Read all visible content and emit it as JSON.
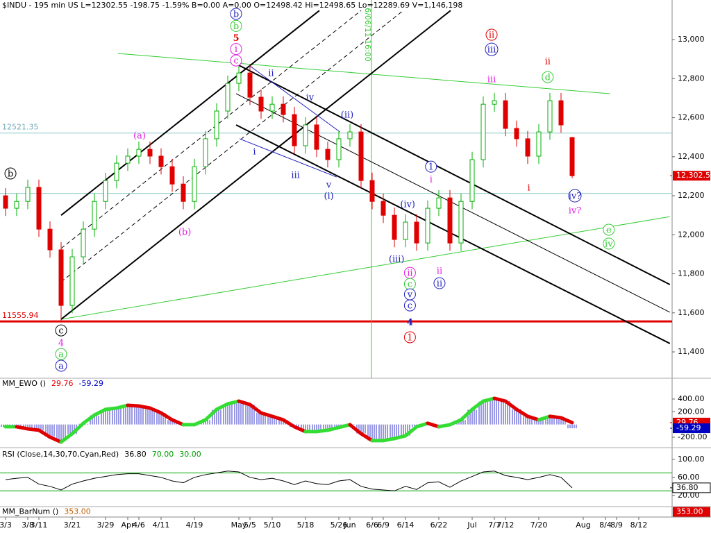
{
  "chart_data": [
    {
      "type": "candlestick",
      "title": "$INDU - 195 min  US  L=12302.55  -198.75  -1.59%  B=0.00  A=0.00  O=12498.42  Hi=12498.65  Lo=12289.69  V=1,146,198",
      "categories": [
        "3/3",
        null,
        "3/8",
        "3/11",
        null,
        null,
        "3/21",
        null,
        null,
        "3/29",
        null,
        "Apr",
        "4/6",
        null,
        "4/11",
        null,
        null,
        "4/19",
        null,
        null,
        null,
        "May",
        "5/5",
        null,
        "5/10",
        null,
        null,
        "5/18",
        null,
        null,
        "5/26",
        "Jun",
        null,
        "6/6",
        "6/9",
        null,
        "6/14",
        null,
        null,
        "6/22",
        null,
        null,
        "Jul",
        null,
        "7/7",
        "7/12",
        null,
        null,
        "7/20",
        null,
        null,
        null,
        "Aug",
        null,
        "8/4",
        "8/9",
        null,
        "8/12",
        null,
        null
      ],
      "open": [
        12200,
        12136,
        12171,
        12243,
        12029,
        11923,
        11638,
        11887,
        12029,
        12171,
        12278,
        12367,
        12403,
        12438,
        12403,
        12349,
        12260,
        12171,
        12349,
        12492,
        12634,
        12776,
        12829,
        12705,
        12634,
        12669,
        12616,
        12456,
        12563,
        12438,
        12385,
        12492,
        12527,
        12278,
        12171,
        12100,
        11976,
        12065,
        11958,
        12136,
        12189,
        11958,
        12171,
        12385,
        12669,
        12687,
        12545,
        12492,
        12403,
        12527,
        12687,
        12498.42,
        null,
        null,
        null,
        null,
        null,
        null,
        null,
        null
      ],
      "high": [
        12240,
        12211,
        12283,
        12283,
        12069,
        11963,
        11927,
        12069,
        12211,
        12318,
        12407,
        12443,
        12478,
        12478,
        12443,
        12389,
        12300,
        12389,
        12532,
        12674,
        12816,
        12869,
        12869,
        12745,
        12709,
        12709,
        12656,
        12603,
        12603,
        12478,
        12532,
        12567,
        12567,
        12318,
        12211,
        12140,
        12105,
        12105,
        12176,
        12229,
        12229,
        12211,
        12425,
        12709,
        12727,
        12727,
        12585,
        12532,
        12567,
        12727,
        12727,
        12498.65,
        null,
        null,
        null,
        null,
        null,
        null,
        null,
        null
      ],
      "low": [
        12096,
        12096,
        12131,
        11989,
        11883,
        11556,
        11598,
        11847,
        11989,
        12131,
        12238,
        12327,
        12363,
        12363,
        12309,
        12220,
        12131,
        12131,
        12309,
        12452,
        12594,
        12736,
        12665,
        12594,
        12594,
        12576,
        12416,
        12416,
        12398,
        12345,
        12345,
        12452,
        12238,
        12131,
        12060,
        11936,
        11936,
        11918,
        11918,
        12096,
        11918,
        11918,
        12131,
        12345,
        12629,
        12505,
        12452,
        12363,
        12363,
        12487,
        12523,
        12289.69,
        null,
        null,
        null,
        null,
        null,
        null,
        null,
        null
      ],
      "close": [
        12136,
        12171,
        12243,
        12029,
        11923,
        11638,
        11887,
        12029,
        12171,
        12278,
        12367,
        12403,
        12438,
        12403,
        12349,
        12260,
        12171,
        12349,
        12492,
        12634,
        12776,
        12829,
        12705,
        12634,
        12669,
        12616,
        12456,
        12563,
        12438,
        12385,
        12492,
        12527,
        12278,
        12171,
        12100,
        11976,
        12065,
        11958,
        12136,
        12189,
        11958,
        12171,
        12385,
        12669,
        12687,
        12545,
        12492,
        12403,
        12527,
        12687,
        12563,
        12302.55,
        null,
        null,
        null,
        null,
        null,
        null,
        null,
        null
      ],
      "up_color": "#00b000",
      "down_color": "#e00000",
      "ylim": [
        11265,
        13203
      ],
      "yticks": [
        {
          "value": 11400,
          "label": "11,400"
        },
        {
          "value": 11600,
          "label": "11,600"
        },
        {
          "value": 11800,
          "label": "11,800"
        },
        {
          "value": 12000,
          "label": "12,000"
        },
        {
          "value": 12200,
          "label": "12,200"
        },
        {
          "value": 12400,
          "label": "12,400"
        },
        {
          "value": 12600,
          "label": "12,600"
        },
        {
          "value": 12800,
          "label": "12,800"
        },
        {
          "value": 13000,
          "label": "13,000"
        }
      ],
      "last_price": {
        "value": 12302.55,
        "label": "12,302.55",
        "color": "#e00000"
      },
      "hlines": [
        {
          "value": 12521.35,
          "label": "12521.35",
          "color": "#8cc8c8",
          "width": 1
        },
        {
          "value": 12212,
          "color": "#8cc8c8",
          "width": 1
        },
        {
          "value": 11555.94,
          "label": "11555.94",
          "color": "#e00000",
          "width": 3
        }
      ],
      "vlines": [
        {
          "x": 32.94,
          "label": "6/06/11 16:00",
          "color": "#33cc33"
        }
      ],
      "trendlines": [
        {
          "from": [
            10.1,
            12929
          ],
          "to": [
            54.4,
            12723
          ],
          "color": "#33cc33",
          "width": 1
        },
        {
          "from": [
            5,
            11567
          ],
          "to": [
            59.8,
            12093
          ],
          "color": "#33cc33",
          "width": 1
        },
        {
          "from": [
            5,
            12100
          ],
          "to": [
            28.25,
            13149
          ],
          "color": "#000000",
          "width": 2
        },
        {
          "from": [
            5,
            11567
          ],
          "to": [
            40.06,
            13149
          ],
          "color": "#000000",
          "width": 2
        },
        {
          "from": [
            5,
            11930
          ],
          "to": [
            32,
            13149
          ],
          "color": "#000000",
          "width": 1,
          "dash": true
        },
        {
          "from": [
            5,
            11759
          ],
          "to": [
            35.8,
            13149
          ],
          "color": "#000000",
          "width": 1,
          "dash": true
        },
        {
          "from": [
            20.75,
            12876
          ],
          "to": [
            59.8,
            11745
          ],
          "color": "#000000",
          "width": 2
        },
        {
          "from": [
            20.75,
            12723
          ],
          "to": [
            59.8,
            11603
          ],
          "color": "#000000",
          "width": 1
        },
        {
          "from": [
            20.75,
            12563
          ],
          "to": [
            59.8,
            11443
          ],
          "color": "#000000",
          "width": 2
        },
        {
          "from": [
            22,
            12865
          ],
          "to": [
            30.1,
            12527
          ],
          "color": "#2020c0",
          "width": 1
        },
        {
          "from": [
            21.06,
            12492
          ],
          "to": [
            29.8,
            12296
          ],
          "color": "#2020c0",
          "width": 1
        }
      ],
      "annotations": [
        {
          "text": "b",
          "x": 0.44,
          "y": 12314,
          "color": "#000000",
          "circled": true
        },
        {
          "text": "(a)",
          "x": 12.06,
          "y": 12509,
          "color": "#e020e0"
        },
        {
          "text": "(b)",
          "x": 16.13,
          "y": 12015,
          "color": "#e020e0"
        },
        {
          "text": "c",
          "x": 5,
          "y": 11510,
          "color": "#000000",
          "circled": true
        },
        {
          "text": "4",
          "x": 5,
          "y": 11446,
          "color": "#e020e0"
        },
        {
          "text": "a",
          "x": 5,
          "y": 11389,
          "color": "#33cc33",
          "circled": true
        },
        {
          "text": "a",
          "x": 5,
          "y": 11329,
          "color": "#2020c0",
          "circled": true
        },
        {
          "text": "b",
          "x": 20.75,
          "y": 13132,
          "color": "#2020c0",
          "circled": true
        },
        {
          "text": "b",
          "x": 20.75,
          "y": 13070,
          "color": "#33cc33",
          "circled": true
        },
        {
          "text": "5",
          "x": 20.75,
          "y": 13010,
          "color": "#e00000",
          "bold": true
        },
        {
          "text": "i",
          "x": 20.75,
          "y": 12952,
          "color": "#e020e0",
          "circled": true
        },
        {
          "text": "c",
          "x": 20.75,
          "y": 12893,
          "color": "#e020e0",
          "circled": true
        },
        {
          "text": "ii",
          "x": 23.9,
          "y": 12829,
          "color": "#2020c0"
        },
        {
          "text": "iv",
          "x": 27.4,
          "y": 12705,
          "color": "#2020c0"
        },
        {
          "text": "i",
          "x": 22.4,
          "y": 12428,
          "color": "#2020c0"
        },
        {
          "text": "iii",
          "x": 26.1,
          "y": 12307,
          "color": "#2020c0"
        },
        {
          "text": "v",
          "x": 29.1,
          "y": 12257,
          "color": "#2020c0"
        },
        {
          "text": "(i)",
          "x": 29.1,
          "y": 12200,
          "color": "#2020c0"
        },
        {
          "text": "(ii)",
          "x": 30.75,
          "y": 12616,
          "color": "#2020c0"
        },
        {
          "text": "(iv)",
          "x": 36.2,
          "y": 12157,
          "color": "#2020c0"
        },
        {
          "text": "(iii)",
          "x": 35.2,
          "y": 11876,
          "color": "#2020c0"
        },
        {
          "text": "ii",
          "x": 36.4,
          "y": 11805,
          "color": "#e020e0",
          "circled": true
        },
        {
          "text": "c",
          "x": 36.4,
          "y": 11748,
          "color": "#33cc33",
          "circled": true
        },
        {
          "text": "v",
          "x": 36.4,
          "y": 11695,
          "color": "#2020c0",
          "circled": true
        },
        {
          "text": "c",
          "x": 36.4,
          "y": 11638,
          "color": "#2020c0",
          "circled": true
        },
        {
          "text": "4",
          "x": 36.4,
          "y": 11553,
          "color": "#2020c0",
          "bold": true
        },
        {
          "text": "1",
          "x": 36.4,
          "y": 11475,
          "color": "#e00000",
          "circled": true
        },
        {
          "text": "1",
          "x": 38.3,
          "y": 12349,
          "color": "#2020c0",
          "circled": true
        },
        {
          "text": "i",
          "x": 38.3,
          "y": 12285,
          "color": "#e020e0"
        },
        {
          "text": "ii",
          "x": 39.06,
          "y": 11816,
          "color": "#e020e0"
        },
        {
          "text": "ii",
          "x": 39.06,
          "y": 11752,
          "color": "#2020c0",
          "circled": true
        },
        {
          "text": "ii",
          "x": 43.75,
          "y": 13025,
          "color": "#e00000",
          "circled": true
        },
        {
          "text": "iii",
          "x": 43.75,
          "y": 12950,
          "color": "#2020c0",
          "circled": true
        },
        {
          "text": "iii",
          "x": 43.75,
          "y": 12797,
          "color": "#e020e0"
        },
        {
          "text": "ii",
          "x": 48.8,
          "y": 12890,
          "color": "#e00000"
        },
        {
          "text": "d",
          "x": 48.8,
          "y": 12808,
          "color": "#33cc33",
          "circled": true
        },
        {
          "text": "i",
          "x": 47.1,
          "y": 12243,
          "color": "#e00000"
        },
        {
          "text": "iv?",
          "x": 51.25,
          "y": 12200,
          "color": "#2020c0",
          "circled": true
        },
        {
          "text": "iv?",
          "x": 51.25,
          "y": 12125,
          "color": "#e020e0"
        },
        {
          "text": "e",
          "x": 54.3,
          "y": 12026,
          "color": "#33cc33",
          "circled": true
        },
        {
          "text": "iv",
          "x": 54.3,
          "y": 11955,
          "color": "#33cc33",
          "circled": true
        }
      ]
    },
    {
      "type": "oscillator",
      "title": "MM_EWO ()",
      "legend_values": [
        {
          "label": "29.76",
          "color": "#e00000"
        },
        {
          "label": "-59.29",
          "color": "#0000c0"
        }
      ],
      "series": [
        {
          "kind": "bar",
          "color": "#3333cc",
          "values": [
            -40,
            -36,
            -60,
            -95,
            -190,
            -260,
            -150,
            10,
            140,
            230,
            250,
            295,
            285,
            255,
            180,
            70,
            -5,
            0,
            70,
            230,
            320,
            360,
            310,
            185,
            125,
            70,
            -40,
            -110,
            -115,
            -90,
            -50,
            -5,
            -140,
            -250,
            -250,
            -220,
            -175,
            -40,
            15,
            -30,
            -5,
            70,
            230,
            360,
            405,
            370,
            240,
            130,
            75,
            125,
            100,
            -59.29,
            null,
            null,
            null,
            null,
            null,
            null,
            null,
            null
          ]
        },
        {
          "kind": "line",
          "up_color": "#33dd33",
          "down_color": "#e00000",
          "values": [
            -36,
            -36,
            -69,
            -90,
            -199,
            -276,
            -145,
            19,
            149,
            237,
            258,
            302,
            291,
            258,
            182,
            73,
            -3,
            -3,
            73,
            237,
            324,
            367,
            313,
            182,
            128,
            73,
            -36,
            -112,
            -112,
            -90,
            -47,
            -3,
            -145,
            -254,
            -254,
            -221,
            -178,
            -36,
            19,
            -36,
            -3,
            73,
            237,
            367,
            411,
            367,
            237,
            128,
            73,
            128,
            106,
            29.76,
            null,
            null,
            null,
            null,
            null,
            null,
            null,
            null
          ]
        }
      ],
      "ylim": [
        -364,
        727
      ],
      "yticks": [
        {
          "value": -200,
          "label": "-200.00"
        },
        {
          "value": 200,
          "label": "200.00"
        },
        {
          "value": 400,
          "label": "400.00"
        }
      ],
      "last_labels": [
        {
          "value": 29.76,
          "label": "29.76",
          "color": "#e00000"
        },
        {
          "value": -59.29,
          "label": "-59.29",
          "color": "#0000c0"
        }
      ]
    },
    {
      "type": "line",
      "title": "RSI (Close,14,30,70,Cyan,Red)",
      "legend_values": [
        {
          "label": "36.80",
          "color": "#000000"
        },
        {
          "label": "70.00",
          "color": "#00a000"
        },
        {
          "label": "30.00",
          "color": "#00a000"
        }
      ],
      "values": [
        55,
        58,
        60,
        45,
        40,
        32,
        45,
        52,
        58,
        62,
        66,
        68,
        68,
        64,
        60,
        52,
        48,
        60,
        66,
        70,
        74,
        72,
        60,
        55,
        58,
        52,
        44,
        52,
        46,
        44,
        52,
        55,
        40,
        34,
        32,
        30,
        40,
        33,
        48,
        50,
        38,
        52,
        62,
        72,
        74,
        64,
        60,
        55,
        60,
        66,
        60,
        36.8,
        null,
        null,
        null,
        null,
        null,
        null,
        null,
        null
      ],
      "color": "#000000",
      "levels": [
        {
          "value": 70,
          "color": "#00a000"
        },
        {
          "value": 30,
          "color": "#00a000"
        }
      ],
      "ylim": [
        -5,
        126
      ],
      "yticks": [
        {
          "value": 20,
          "label": "20.00"
        },
        {
          "value": 60,
          "label": "60.00"
        },
        {
          "value": 100,
          "label": "100.00"
        }
      ],
      "last_labels": [
        {
          "value": 36.8,
          "label": "36.80",
          "color": "#000000"
        }
      ]
    },
    {
      "type": "indicator",
      "title": "MM_BarNum ()",
      "legend_values": [
        {
          "label": "353.00",
          "color": "#c06000"
        }
      ],
      "box_label": {
        "label": "353.00",
        "color": "#e00000"
      }
    }
  ]
}
